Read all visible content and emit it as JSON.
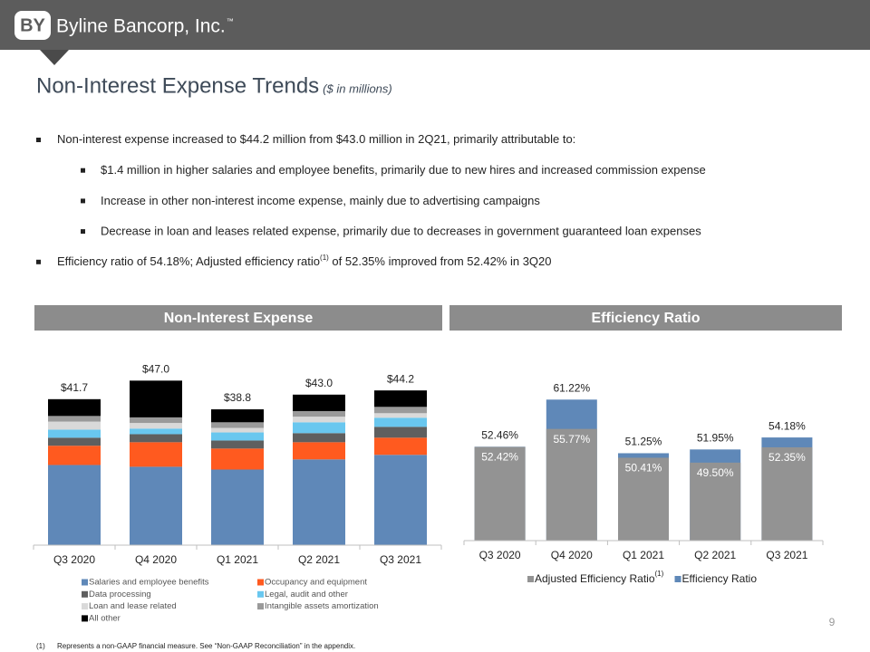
{
  "header": {
    "logo_mark": "BY",
    "company": "Byline Bancorp, Inc.",
    "trademark": "™"
  },
  "title": "Non-Interest Expense Trends",
  "subtitle": "($ in millions)",
  "bullets": [
    {
      "text": "Non-interest expense increased to $44.2 million from $43.0 million in 2Q21, primarily attributable to:",
      "children": [
        "$1.4 million in higher salaries and employee benefits, primarily due to new hires and increased commission expense",
        "Increase in other non-interest income expense, mainly due to advertising campaigns",
        "Decrease in loan and leases related expense, primarily due to decreases in government guaranteed loan expenses"
      ]
    },
    {
      "text": "Efficiency ratio of 54.18%; Adjusted efficiency ratio",
      "sup": "(1)",
      "text_after": " of 52.35% improved from 52.42% in 3Q20"
    }
  ],
  "chart_data": [
    {
      "type": "stacked_bar",
      "title": "Non-Interest Expense",
      "categories": [
        "Q3 2020",
        "Q4 2020",
        "Q1 2021",
        "Q2 2021",
        "Q3 2021"
      ],
      "ylim": [
        0,
        52
      ],
      "series": [
        {
          "name": "Salaries and employee benefits",
          "color": "#5f88b8",
          "values": [
            22.9,
            22.4,
            21.6,
            24.5,
            25.8
          ]
        },
        {
          "name": "Occupancy and equipment",
          "color": "#ff5a1f",
          "values": [
            5.5,
            7.0,
            6.0,
            4.9,
            4.9
          ]
        },
        {
          "name": "Data processing",
          "color": "#5f5f5f",
          "values": [
            2.3,
            2.3,
            2.3,
            2.6,
            3.1
          ]
        },
        {
          "name": "Legal, audit and other",
          "color": "#69c7ef",
          "values": [
            2.3,
            1.6,
            2.3,
            3.1,
            2.6
          ]
        },
        {
          "name": "Loan and lease related",
          "color": "#d9d9d9",
          "values": [
            2.3,
            1.6,
            1.3,
            1.6,
            1.3
          ]
        },
        {
          "name": "Intangible assets amortization",
          "color": "#9a9a9a",
          "values": [
            1.6,
            1.6,
            1.6,
            1.6,
            1.8
          ]
        },
        {
          "name": "All other",
          "color": "#000000",
          "values": [
            4.8,
            10.5,
            3.7,
            4.7,
            4.7
          ]
        }
      ],
      "totals": {
        "values": [
          41.7,
          47.0,
          38.8,
          43.0,
          44.2
        ],
        "value_labels": [
          "$41.7",
          "$47.0",
          "$38.8",
          "$43.0",
          "$44.2"
        ]
      }
    },
    {
      "type": "overlap_bar",
      "title": "Efficiency Ratio",
      "categories": [
        "Q3 2020",
        "Q4 2020",
        "Q1 2021",
        "Q2 2021",
        "Q3 2021"
      ],
      "ylim": [
        35,
        68
      ],
      "legend_note": "(1)",
      "series": [
        {
          "name": "Adjusted Efficiency Ratio",
          "color": "#939393",
          "values": [
            52.42,
            55.77,
            50.41,
            49.5,
            52.35
          ],
          "value_labels": [
            "52.42%",
            "55.77%",
            "50.41%",
            "49.50%",
            "52.35%"
          ]
        },
        {
          "name": "Efficiency Ratio",
          "color": "#5f88b8",
          "values": [
            52.46,
            61.22,
            51.25,
            51.95,
            54.18
          ],
          "value_labels": [
            "52.46%",
            "61.22%",
            "51.25%",
            "51.95%",
            "54.18%"
          ]
        }
      ]
    }
  ],
  "footnote": {
    "marker": "(1)",
    "text": "Represents a non-GAAP financial measure.  See “Non-GAAP Reconciliation” in the appendix."
  },
  "page_number": "9"
}
